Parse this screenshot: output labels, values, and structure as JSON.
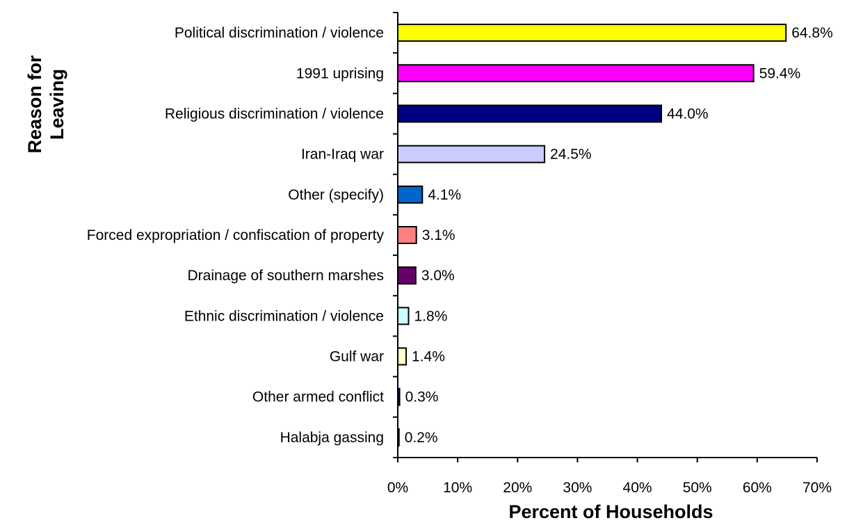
{
  "chart_data": {
    "type": "bar",
    "orientation": "horizontal",
    "title": "",
    "xlabel": "Percent of Households",
    "ylabel": "Reason for Leaving",
    "xlim": [
      0,
      70
    ],
    "xticks": [
      "0%",
      "10%",
      "20%",
      "30%",
      "40%",
      "50%",
      "60%",
      "70%"
    ],
    "grid": false,
    "categories": [
      "Political discrimination / violence",
      "1991 uprising",
      "Religious discrimination / violence",
      "Iran-Iraq war",
      "Other (specify)",
      "Forced expropriation / confiscation of property",
      "Drainage of southern marshes",
      "Ethnic discrimination / violence",
      "Gulf war",
      "Other armed conflict",
      "Halabja gassing"
    ],
    "values": [
      64.8,
      59.4,
      44.0,
      24.5,
      4.1,
      3.1,
      3.0,
      1.8,
      1.4,
      0.3,
      0.2
    ],
    "value_labels": [
      "64.8%",
      "59.4%",
      "44.0%",
      "24.5%",
      "4.1%",
      "3.1%",
      "3.0%",
      "1.8%",
      "1.4%",
      "0.3%",
      "0.2%"
    ],
    "colors": [
      "#ffff00",
      "#ff00ff",
      "#000080",
      "#ccccff",
      "#0066cc",
      "#ff8080",
      "#660066",
      "#ccffff",
      "#ffffcc",
      "#000080",
      "#000080"
    ]
  }
}
